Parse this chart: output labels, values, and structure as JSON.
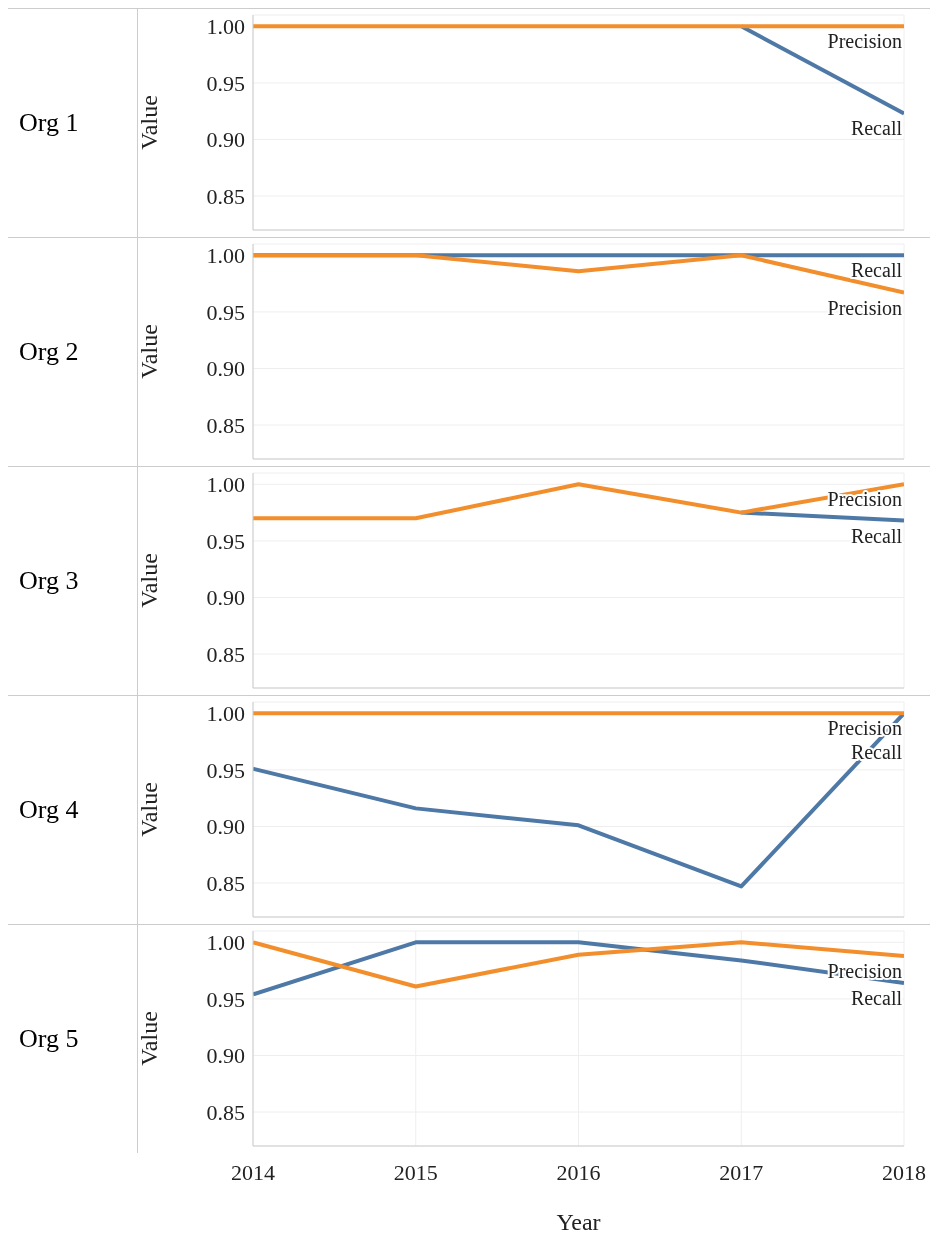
{
  "chart_data": [
    {
      "type": "line",
      "title": "Org 1",
      "ylabel": "Value",
      "x": [
        2014,
        2015,
        2016,
        2017,
        2018
      ],
      "xlim": [
        2014,
        2018
      ],
      "xticks": [
        2014,
        2015,
        2016,
        2017,
        2018
      ],
      "ylim": [
        0.82,
        1.01
      ],
      "yticks": [
        {
          "value": 0.85,
          "label": "0.85"
        },
        {
          "value": 0.9,
          "label": "0.90"
        },
        {
          "value": 0.95,
          "label": "0.95"
        },
        {
          "value": 1,
          "label": "1.00"
        }
      ],
      "grid": true,
      "tick_labels": "y",
      "series": [
        {
          "name": "Recall",
          "color": "#4e79a7",
          "values": [
            null,
            null,
            null,
            1,
            0.923
          ]
        },
        {
          "name": "Precision",
          "color": "#f28e2b",
          "values": [
            1,
            1,
            1,
            1,
            1
          ]
        }
      ]
    },
    {
      "type": "line",
      "title": "Org 2",
      "ylabel": "Value",
      "x": [
        2014,
        2015,
        2016,
        2017,
        2018
      ],
      "xlim": [
        2014,
        2018
      ],
      "xticks": [
        2014,
        2015,
        2016,
        2017,
        2018
      ],
      "ylim": [
        0.82,
        1.01
      ],
      "yticks": [
        {
          "value": 0.85,
          "label": "0.85"
        },
        {
          "value": 0.9,
          "label": "0.90"
        },
        {
          "value": 0.95,
          "label": "0.95"
        },
        {
          "value": 1,
          "label": "1.00"
        }
      ],
      "grid": true,
      "tick_labels": "y",
      "series": [
        {
          "name": "Recall",
          "color": "#4e79a7",
          "values": [
            1,
            1,
            1,
            1,
            1
          ]
        },
        {
          "name": "Precision",
          "color": "#f28e2b",
          "values": [
            1,
            1,
            0.986,
            1,
            0.967
          ]
        }
      ]
    },
    {
      "type": "line",
      "title": "Org 3",
      "ylabel": "Value",
      "x": [
        2014,
        2015,
        2016,
        2017,
        2018
      ],
      "xlim": [
        2014,
        2018
      ],
      "xticks": [
        2014,
        2015,
        2016,
        2017,
        2018
      ],
      "ylim": [
        0.82,
        1.01
      ],
      "yticks": [
        {
          "value": 0.85,
          "label": "0.85"
        },
        {
          "value": 0.9,
          "label": "0.90"
        },
        {
          "value": 0.95,
          "label": "0.95"
        },
        {
          "value": 1,
          "label": "1.00"
        }
      ],
      "grid": true,
      "tick_labels": "y",
      "series": [
        {
          "name": "Recall",
          "color": "#4e79a7",
          "values": [
            null,
            null,
            null,
            0.975,
            0.968
          ]
        },
        {
          "name": "Precision",
          "color": "#f28e2b",
          "values": [
            0.97,
            0.97,
            1,
            0.975,
            1
          ]
        }
      ]
    },
    {
      "type": "line",
      "title": "Org 4",
      "ylabel": "Value",
      "x": [
        2014,
        2015,
        2016,
        2017,
        2018
      ],
      "xlim": [
        2014,
        2018
      ],
      "xticks": [
        2014,
        2015,
        2016,
        2017,
        2018
      ],
      "ylim": [
        0.82,
        1.01
      ],
      "yticks": [
        {
          "value": 0.85,
          "label": "0.85"
        },
        {
          "value": 0.9,
          "label": "0.90"
        },
        {
          "value": 0.95,
          "label": "0.95"
        },
        {
          "value": 1,
          "label": "1.00"
        }
      ],
      "grid": true,
      "tick_labels": "y",
      "series": [
        {
          "name": "Recall",
          "color": "#4e79a7",
          "values": [
            0.951,
            0.916,
            0.901,
            0.847,
            1
          ]
        },
        {
          "name": "Precision",
          "color": "#f28e2b",
          "values": [
            1,
            1,
            1,
            1,
            1
          ]
        }
      ]
    },
    {
      "type": "line",
      "title": "Org 5",
      "ylabel": "Value",
      "xlabel": "Year",
      "x": [
        2014,
        2015,
        2016,
        2017,
        2018
      ],
      "xlim": [
        2014,
        2018
      ],
      "xticks": [
        2014,
        2015,
        2016,
        2017,
        2018
      ],
      "ylim": [
        0.82,
        1.01
      ],
      "yticks": [
        {
          "value": 0.85,
          "label": "0.85"
        },
        {
          "value": 0.9,
          "label": "0.90"
        },
        {
          "value": 0.95,
          "label": "0.95"
        },
        {
          "value": 1,
          "label": "1.00"
        }
      ],
      "grid": true,
      "series": [
        {
          "name": "Recall",
          "color": "#4e79a7",
          "values": [
            0.954,
            1,
            1,
            0.984,
            0.964
          ]
        },
        {
          "name": "Precision",
          "color": "#f28e2b",
          "values": [
            1,
            0.961,
            0.989,
            1,
            0.988
          ]
        }
      ]
    }
  ]
}
